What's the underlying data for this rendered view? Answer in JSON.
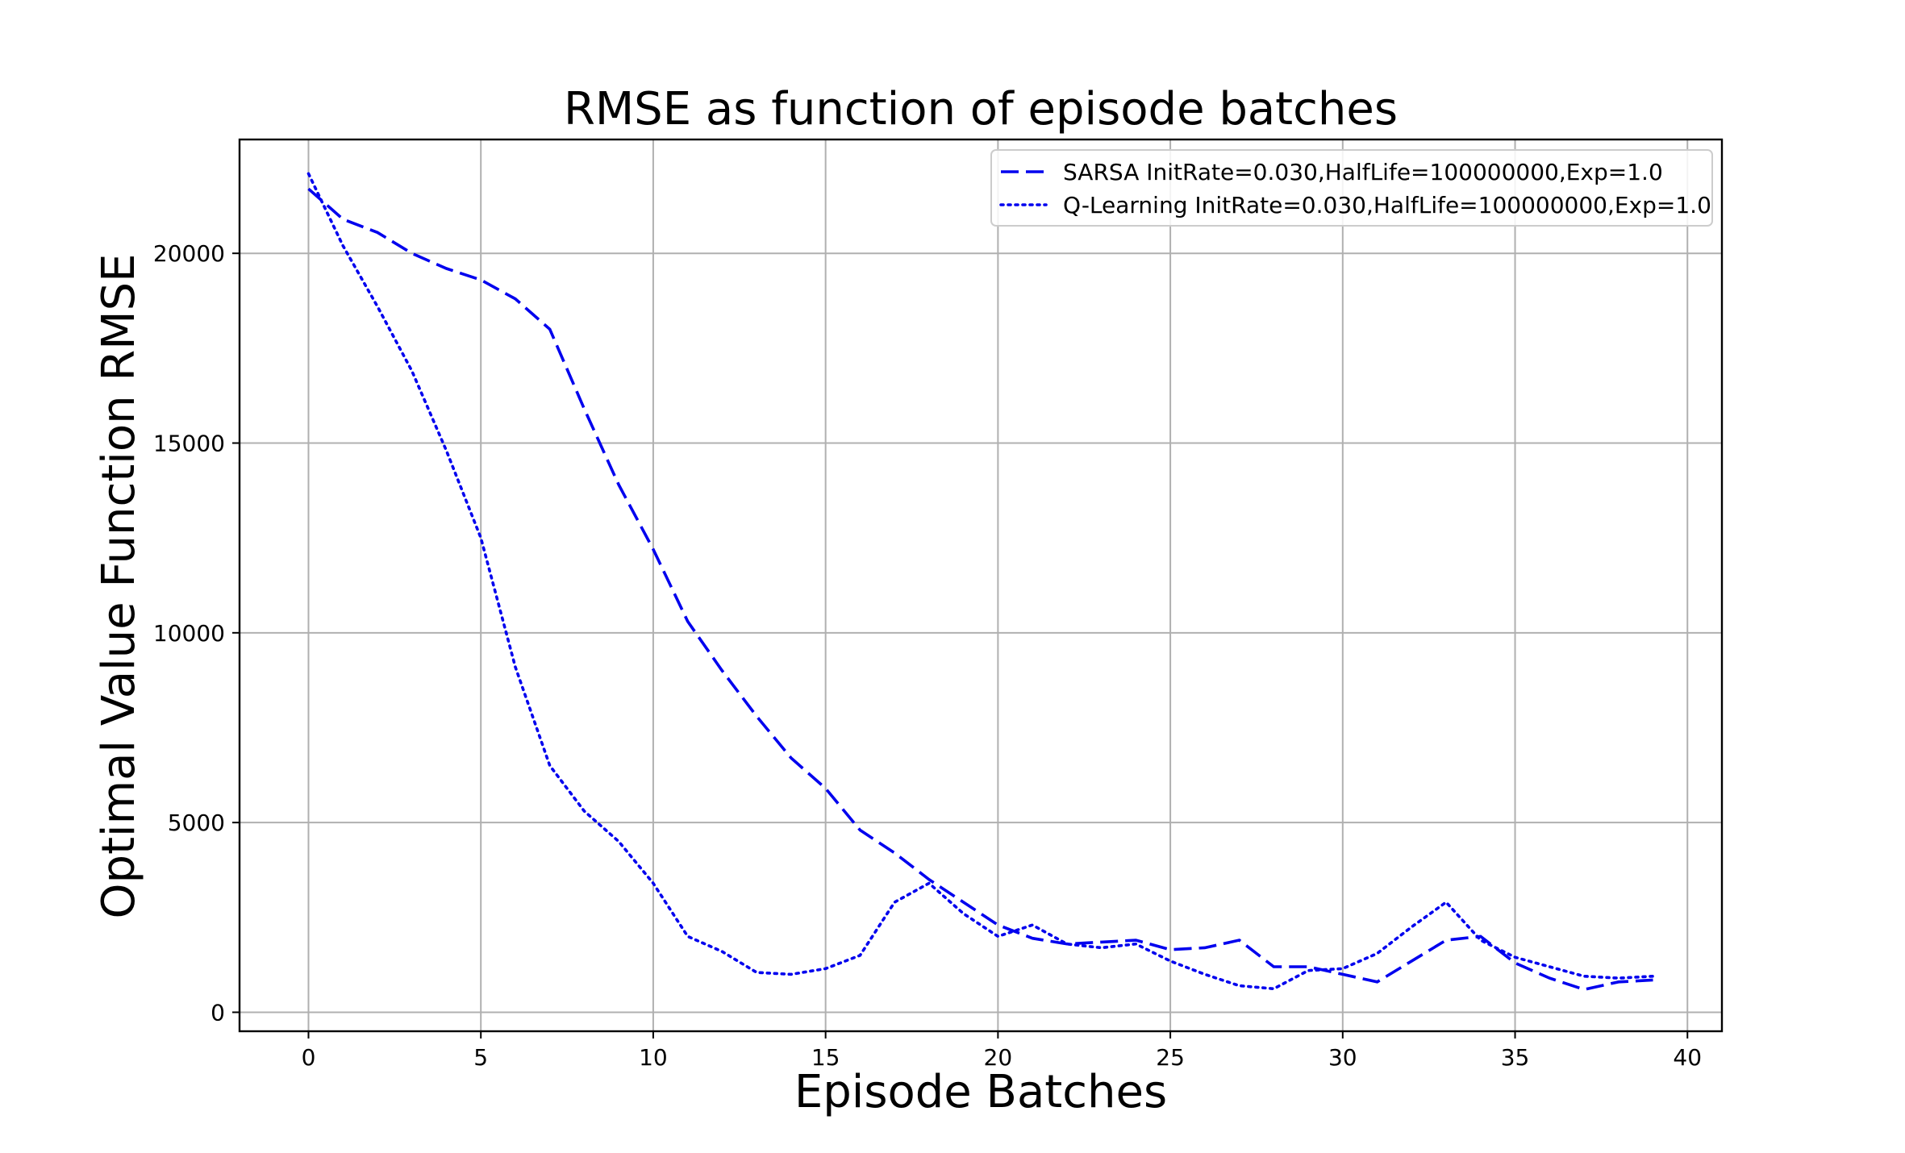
{
  "chart_data": {
    "type": "line",
    "title": "RMSE as function of episode batches",
    "xlabel": "Episode Batches",
    "ylabel": "Optimal Value Function RMSE",
    "xlim": [
      -2,
      41
    ],
    "ylim": [
      -500,
      23000
    ],
    "xticks": [
      0,
      5,
      10,
      15,
      20,
      25,
      30,
      35,
      40
    ],
    "yticks": [
      0,
      5000,
      10000,
      15000,
      20000
    ],
    "grid": true,
    "legend_position": "top-right",
    "colors": {
      "line": "#0000ee"
    },
    "x": [
      0,
      1,
      2,
      3,
      4,
      5,
      6,
      7,
      8,
      9,
      10,
      11,
      12,
      13,
      14,
      15,
      16,
      17,
      18,
      19,
      20,
      21,
      22,
      23,
      24,
      25,
      26,
      27,
      28,
      29,
      30,
      31,
      32,
      33,
      34,
      35,
      36,
      37,
      38,
      39
    ],
    "series": [
      {
        "name": "SARSA InitRate=0.030,HalfLife=100000000,Exp=1.0",
        "style": "dashed",
        "values": [
          21700,
          20900,
          20550,
          20000,
          19600,
          19300,
          18800,
          18000,
          15900,
          13900,
          12200,
          10300,
          9000,
          7800,
          6700,
          5900,
          4800,
          4200,
          3500,
          2900,
          2300,
          1950,
          1800,
          1850,
          1900,
          1650,
          1700,
          1900,
          1200,
          1200,
          1000,
          800,
          1350,
          1900,
          2000,
          1300,
          900,
          600,
          800,
          850
        ]
      },
      {
        "name": "Q-Learning InitRate=0.030,HalfLife=100000000,Exp=1.0",
        "style": "dotted",
        "values": [
          22100,
          20200,
          18600,
          16900,
          14800,
          12500,
          9100,
          6500,
          5300,
          4500,
          3400,
          2000,
          1600,
          1050,
          1000,
          1150,
          1500,
          2900,
          3400,
          2600,
          2000,
          2300,
          1800,
          1700,
          1800,
          1350,
          1000,
          700,
          620,
          1100,
          1150,
          1550,
          2250,
          2900,
          1900,
          1450,
          1200,
          950,
          900,
          950
        ]
      }
    ]
  }
}
